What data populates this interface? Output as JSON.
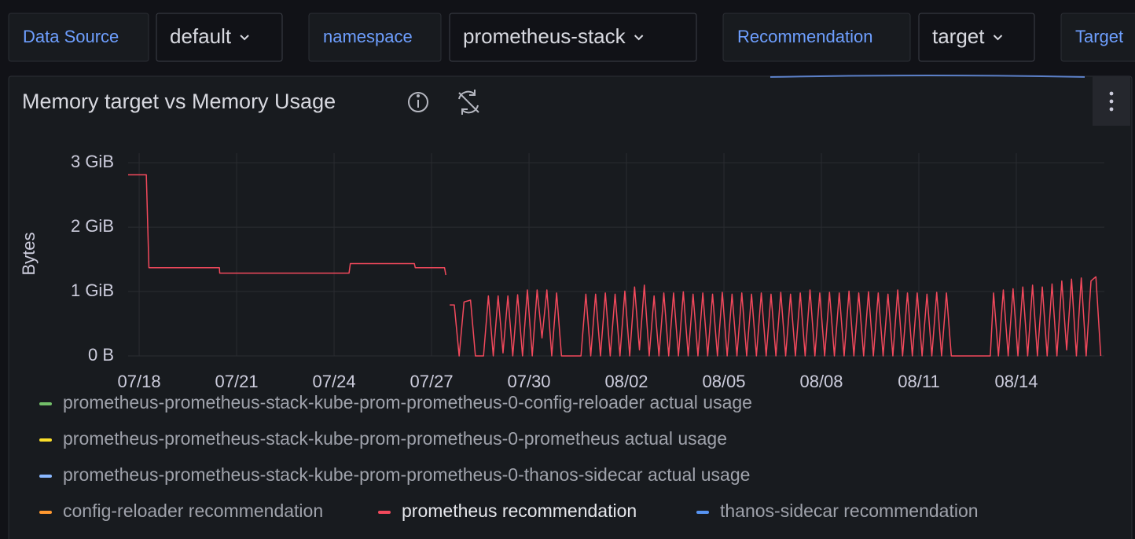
{
  "variables": [
    {
      "label": "Data Source",
      "value": "default"
    },
    {
      "label": "namespace",
      "value": "prometheus-stack"
    },
    {
      "label": "Recommendation",
      "value": "target"
    },
    {
      "label": "Target"
    }
  ],
  "panel": {
    "title": "Memory target vs Memory Usage"
  },
  "chart_data": {
    "type": "line",
    "y_label": "Bytes",
    "xlim": [
      198.66,
      228.71
    ],
    "xticks": [
      {
        "value": 199,
        "label": "07/18"
      },
      {
        "value": 202,
        "label": "07/21"
      },
      {
        "value": 205,
        "label": "07/24"
      },
      {
        "value": 208,
        "label": "07/27"
      },
      {
        "value": 211,
        "label": "07/30"
      },
      {
        "value": 214,
        "label": "08/02"
      },
      {
        "value": 217,
        "label": "08/05"
      },
      {
        "value": 220,
        "label": "08/08"
      },
      {
        "value": 223,
        "label": "08/11"
      },
      {
        "value": 226,
        "label": "08/14"
      }
    ],
    "ylim": [
      0,
      3380000000
    ],
    "yticks": [
      {
        "value": 0,
        "label": "0 B"
      },
      {
        "value": 1073741824,
        "label": "1 GiB"
      },
      {
        "value": 2147483648,
        "label": "2 GiB"
      },
      {
        "value": 3221225472,
        "label": "3 GiB"
      }
    ],
    "grid": true,
    "legend": "bottom",
    "series": [
      {
        "name": "prometheus-prometheus-stack-kube-prom-prometheus-0-config-reloader actual usage",
        "color": "#73bf69",
        "hidden": true,
        "x": [],
        "values": []
      },
      {
        "name": "prometheus-prometheus-stack-kube-prom-prometheus-0-prometheus actual usage",
        "color": "#fade2a",
        "hidden": true,
        "x": [],
        "values": []
      },
      {
        "name": "prometheus-prometheus-stack-kube-prom-prometheus-0-thanos-sidecar actual usage",
        "color": "#8ab8ff",
        "hidden": true,
        "x": [],
        "values": []
      },
      {
        "name": "config-reloader recommendation",
        "color": "#ff9830",
        "hidden": true,
        "x": [],
        "values": []
      },
      {
        "name": "prometheus recommendation",
        "color": "#f2495c",
        "hidden": false,
        "x": [
          198.66,
          199.22,
          199.3,
          201.47,
          201.48,
          205.46,
          205.5,
          207.47,
          207.5,
          208.4,
          208.44,
          208.5,
          208.56,
          208.7,
          208.85,
          209.0,
          209.2,
          209.35,
          209.6,
          209.75,
          209.9,
          210.05,
          210.2,
          210.35,
          210.5,
          210.65,
          210.8,
          210.95,
          211.1,
          211.25,
          211.4,
          211.55,
          211.7,
          211.85,
          212.0,
          212.6,
          212.75,
          212.9,
          213.05,
          213.2,
          213.35,
          213.5,
          213.65,
          213.8,
          213.95,
          214.1,
          214.25,
          214.4,
          214.55,
          214.7,
          214.85,
          215.0,
          215.15,
          215.3,
          215.45,
          215.6,
          215.75,
          215.9,
          216.05,
          216.2,
          216.35,
          216.5,
          216.65,
          216.8,
          216.95,
          217.1,
          217.25,
          217.4,
          217.55,
          217.7,
          217.85,
          218.0,
          218.15,
          218.3,
          218.45,
          218.6,
          218.75,
          218.9,
          219.05,
          219.2,
          219.35,
          219.5,
          219.65,
          219.8,
          219.95,
          220.1,
          220.25,
          220.4,
          220.55,
          220.7,
          220.85,
          221.0,
          221.15,
          221.3,
          221.45,
          221.6,
          221.75,
          221.9,
          222.05,
          222.2,
          222.35,
          222.5,
          222.65,
          222.8,
          222.95,
          223.1,
          223.25,
          223.4,
          223.55,
          223.7,
          223.85,
          224.0,
          225.2,
          225.3,
          225.45,
          225.6,
          225.75,
          225.9,
          226.05,
          226.2,
          226.35,
          226.5,
          226.65,
          226.8,
          226.95,
          227.1,
          227.25,
          227.4,
          227.55,
          227.7,
          227.85,
          228.0,
          228.15,
          228.3,
          228.45,
          228.6
        ],
        "values": [
          3020000000.0,
          3020000000.0,
          1470000000.0,
          1470000000.0,
          1380000000.0,
          1380000000.0,
          1540000000.0,
          1540000000.0,
          1470000000.0,
          1470000000.0,
          1350000000.0,
          null,
          850000000.0,
          850000000.0,
          0,
          900000000.0,
          930000000.0,
          0,
          0,
          1000000000.0,
          0,
          1000000000.0,
          50000000.0,
          1000000000.0,
          0,
          1020000000.0,
          0,
          1100000000.0,
          0,
          1100000000.0,
          300000000.0,
          1100000000.0,
          0,
          1050000000.0,
          0,
          0,
          1030000000.0,
          0,
          1030000000.0,
          0,
          1050000000.0,
          0,
          1030000000.0,
          0,
          1080000000.0,
          0,
          1150000000.0,
          100000000.0,
          1180000000.0,
          0,
          1000000000.0,
          0,
          1050000000.0,
          0,
          1050000000.0,
          0,
          1070000000.0,
          0,
          1030000000.0,
          0,
          1050000000.0,
          0,
          1030000000.0,
          0,
          1060000000.0,
          0,
          1030000000.0,
          0,
          1050000000.0,
          0,
          1030000000.0,
          0,
          1050000000.0,
          0,
          1030000000.0,
          0,
          1060000000.0,
          0,
          1030000000.0,
          0,
          1050000000.0,
          0,
          1100000000.0,
          0,
          1050000000.0,
          0,
          1060000000.0,
          0,
          1050000000.0,
          0,
          1080000000.0,
          0,
          1050000000.0,
          0,
          1070000000.0,
          0,
          1050000000.0,
          0,
          1030000000.0,
          0,
          1100000000.0,
          0,
          1050000000.0,
          0,
          1050000000.0,
          0,
          1030000000.0,
          0,
          1060000000.0,
          0,
          1050000000.0,
          0,
          0,
          1050000000.0,
          0,
          1100000000.0,
          0,
          1120000000.0,
          0,
          1150000000.0,
          0,
          1180000000.0,
          0,
          1150000000.0,
          0,
          1200000000.0,
          0,
          1250000000.0,
          100000000.0,
          1280000000.0,
          0,
          1300000000.0,
          0,
          1250000000.0,
          1320000000.0,
          0
        ]
      },
      {
        "name": "thanos-sidecar recommendation",
        "color": "#5794f2",
        "hidden": true,
        "x": [],
        "values": []
      }
    ]
  }
}
